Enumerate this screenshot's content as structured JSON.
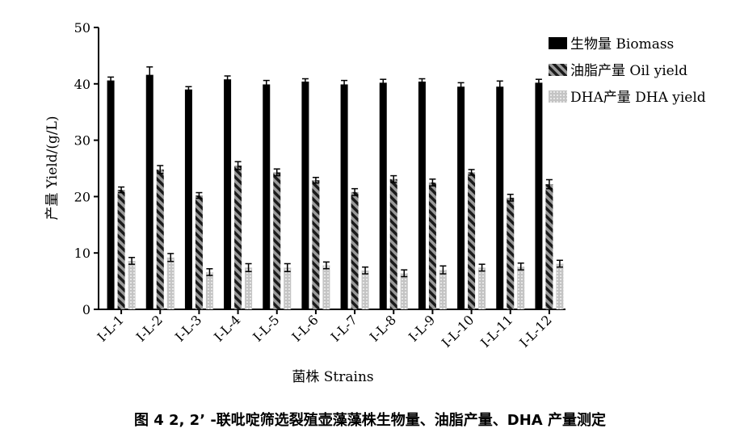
{
  "chart_data": {
    "type": "bar",
    "ylabel": "产量 Yield/(g/L)",
    "xlabel": "菌株 Strains",
    "ylim": [
      0,
      50
    ],
    "yticks": [
      0,
      10,
      20,
      30,
      40,
      50
    ],
    "legend_position": "top-right",
    "categories": [
      "I-L-1",
      "I-L-2",
      "I-L-3",
      "I-L-4",
      "I-L-5",
      "I-L-6",
      "I-L-7",
      "I-L-8",
      "I-L-9",
      "I-L-10",
      "I-L-11",
      "I-L-12"
    ],
    "series": [
      {
        "name": "生物量  Biomass",
        "pattern": "solid",
        "color": "#000000",
        "values": [
          40.6,
          41.6,
          39.0,
          40.8,
          39.9,
          40.4,
          39.9,
          40.2,
          40.4,
          39.5,
          39.5,
          40.2
        ],
        "errors": [
          0.6,
          1.4,
          0.5,
          0.6,
          0.7,
          0.5,
          0.7,
          0.6,
          0.5,
          0.7,
          1.0,
          0.6
        ]
      },
      {
        "name": "油脂产量  Oil yield",
        "pattern": "diagonal-stripes",
        "color": "#555555",
        "values": [
          21.2,
          24.8,
          20.2,
          25.5,
          24.3,
          22.9,
          20.8,
          23.1,
          22.5,
          24.3,
          19.8,
          22.2
        ],
        "errors": [
          0.5,
          0.7,
          0.5,
          0.7,
          0.6,
          0.5,
          0.6,
          0.6,
          0.6,
          0.5,
          0.6,
          0.8
        ]
      },
      {
        "name": "DHA产量  DHA yield",
        "pattern": "dots",
        "color": "#c8c8c8",
        "values": [
          8.6,
          9.2,
          6.6,
          7.4,
          7.4,
          7.8,
          6.9,
          6.4,
          7.0,
          7.4,
          7.6,
          8.1
        ],
        "errors": [
          0.6,
          0.7,
          0.6,
          0.7,
          0.7,
          0.6,
          0.6,
          0.6,
          0.7,
          0.6,
          0.6,
          0.6
        ]
      }
    ]
  },
  "caption": "图 4   2, 2’ -联吡啶筛选裂殖壶藻藻株生物量、油脂产量、DHA 产量测定"
}
